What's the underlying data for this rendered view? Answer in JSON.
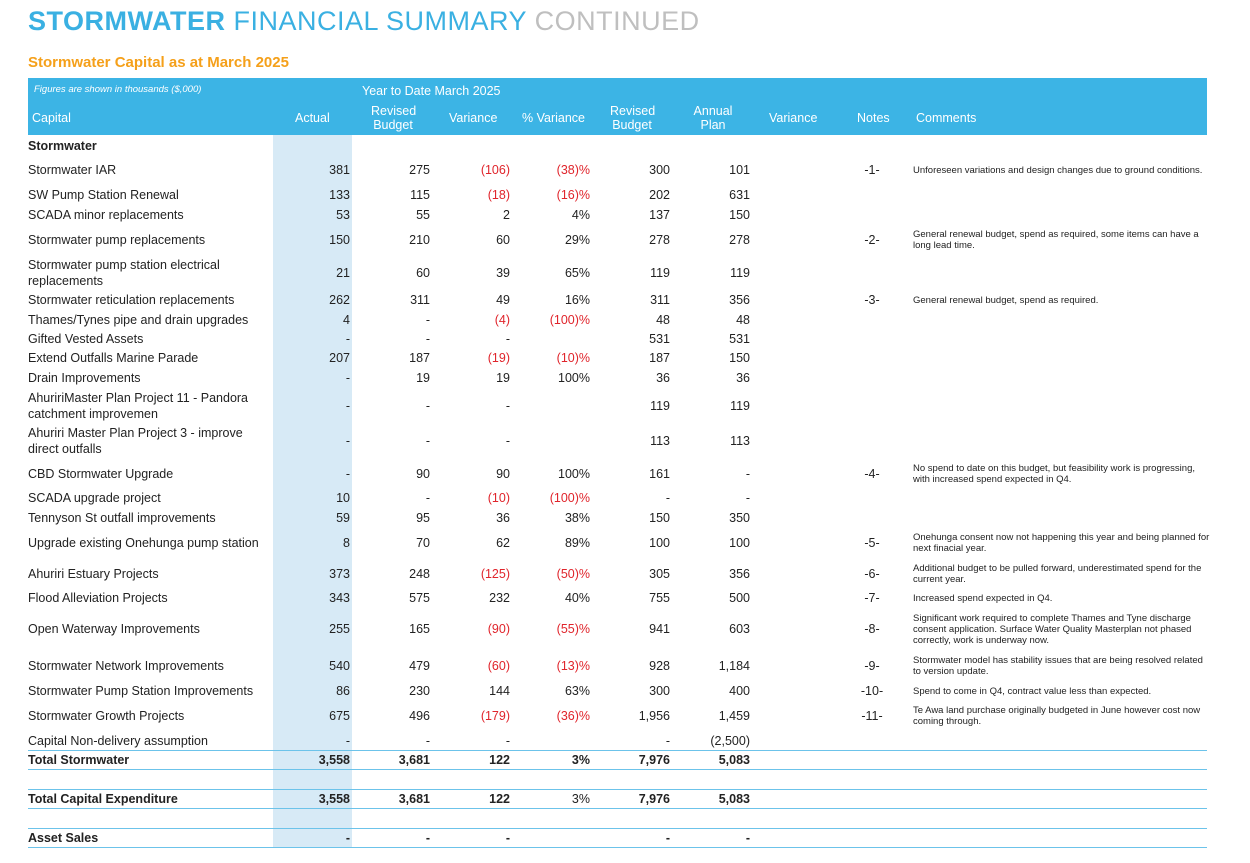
{
  "title": {
    "bold": "STORMWATER",
    "mid": "FINANCIAL SUMMARY",
    "light": "CONTINUED"
  },
  "subtitle": "Stormwater Capital as at March 2025",
  "header": {
    "figures_note": "Figures are shown in thousands ($,000)",
    "ytd": "Year to Date  March 2025",
    "capital": "Capital",
    "actual": "Actual",
    "revised_budget_1": "Revised",
    "revised_budget_2": "Budget",
    "variance": "Variance",
    "pct_variance": "% Variance",
    "revised_budget2_1": "Revised",
    "revised_budget2_2": "Budget",
    "annual_plan_1": "Annual",
    "annual_plan_2": "Plan",
    "variance2": "Variance",
    "notes": "Notes",
    "comments": "Comments"
  },
  "section_label": "Stormwater",
  "rows": [
    {
      "cap": "Stormwater IAR",
      "act": "381",
      "rb": "275",
      "var": "(106)",
      "pv": "(38)%",
      "rb2": "300",
      "ap": "101",
      "nt": "-1-",
      "cm": "Unforeseen variations and design changes due to ground conditions.",
      "neg": true
    },
    {
      "cap": "SW Pump Station Renewal",
      "act": "133",
      "rb": "115",
      "var": "(18)",
      "pv": "(16)%",
      "rb2": "202",
      "ap": "631",
      "nt": "",
      "cm": "",
      "neg": true
    },
    {
      "cap": "SCADA minor replacements",
      "act": "53",
      "rb": "55",
      "var": "2",
      "pv": "4%",
      "rb2": "137",
      "ap": "150",
      "nt": "",
      "cm": "",
      "neg": false
    },
    {
      "cap": "Stormwater pump replacements",
      "act": "150",
      "rb": "210",
      "var": "60",
      "pv": "29%",
      "rb2": "278",
      "ap": "278",
      "nt": "-2-",
      "cm": "General renewal budget, spend as required, some items can have a long lead time.",
      "neg": false
    },
    {
      "cap": "Stormwater pump station electrical replacements",
      "act": "21",
      "rb": "60",
      "var": "39",
      "pv": "65%",
      "rb2": "119",
      "ap": "119",
      "nt": "",
      "cm": "",
      "neg": false
    },
    {
      "cap": "Stormwater reticulation replacements",
      "act": "262",
      "rb": "311",
      "var": "49",
      "pv": "16%",
      "rb2": "311",
      "ap": "356",
      "nt": "-3-",
      "cm": "General renewal budget, spend as required.",
      "neg": false
    },
    {
      "cap": "Thames/Tynes pipe and drain upgrades",
      "act": "4",
      "rb": "-",
      "var": "(4)",
      "pv": "(100)%",
      "rb2": "48",
      "ap": "48",
      "nt": "",
      "cm": "",
      "neg": true
    },
    {
      "cap": "Gifted Vested Assets",
      "act": "-",
      "rb": "-",
      "var": "-",
      "pv": "",
      "rb2": "531",
      "ap": "531",
      "nt": "",
      "cm": "",
      "neg": false
    },
    {
      "cap": "Extend Outfalls Marine Parade",
      "act": "207",
      "rb": "187",
      "var": "(19)",
      "pv": "(10)%",
      "rb2": "187",
      "ap": "150",
      "nt": "",
      "cm": "",
      "neg": true
    },
    {
      "cap": "Drain Improvements",
      "act": "-",
      "rb": "19",
      "var": "19",
      "pv": "100%",
      "rb2": "36",
      "ap": "36",
      "nt": "",
      "cm": "",
      "neg": false
    },
    {
      "cap": "AhuririMaster Plan Project 11 - Pandora catchment improvemen",
      "act": "-",
      "rb": "-",
      "var": "-",
      "pv": "",
      "rb2": "119",
      "ap": "119",
      "nt": "",
      "cm": "",
      "neg": false
    },
    {
      "cap": "Ahuriri Master Plan Project 3 - improve direct outfalls",
      "act": "-",
      "rb": "-",
      "var": "-",
      "pv": "",
      "rb2": "113",
      "ap": "113",
      "nt": "",
      "cm": "",
      "neg": false
    },
    {
      "cap": "CBD Stormwater Upgrade",
      "act": "-",
      "rb": "90",
      "var": "90",
      "pv": "100%",
      "rb2": "161",
      "ap": "-",
      "nt": "-4-",
      "cm": "No spend to date on this budget, but feasibility work is progressing, with increased spend expected in Q4.",
      "neg": false
    },
    {
      "cap": "SCADA upgrade project",
      "act": "10",
      "rb": "-",
      "var": "(10)",
      "pv": "(100)%",
      "rb2": "-",
      "ap": "-",
      "nt": "",
      "cm": "",
      "neg": true
    },
    {
      "cap": "Tennyson St outfall improvements",
      "act": "59",
      "rb": "95",
      "var": "36",
      "pv": "38%",
      "rb2": "150",
      "ap": "350",
      "nt": "",
      "cm": "",
      "neg": false
    },
    {
      "cap": "Upgrade existing Onehunga pump station",
      "act": "8",
      "rb": "70",
      "var": "62",
      "pv": "89%",
      "rb2": "100",
      "ap": "100",
      "nt": "-5-",
      "cm": "Onehunga consent now not happening this year and being planned for next finacial year.",
      "neg": false
    },
    {
      "cap": "Ahuriri Estuary Projects",
      "act": "373",
      "rb": "248",
      "var": "(125)",
      "pv": "(50)%",
      "rb2": "305",
      "ap": "356",
      "nt": "-6-",
      "cm": "Additional budget to be pulled forward, underestimated spend for the current year.",
      "neg": true
    },
    {
      "cap": "Flood Alleviation Projects",
      "act": "343",
      "rb": "575",
      "var": "232",
      "pv": "40%",
      "rb2": "755",
      "ap": "500",
      "nt": "-7-",
      "cm": "Increased spend expected in Q4.",
      "neg": false
    },
    {
      "cap": "Open Waterway Improvements",
      "act": "255",
      "rb": "165",
      "var": "(90)",
      "pv": "(55)%",
      "rb2": "941",
      "ap": "603",
      "nt": "-8-",
      "cm": "Significant work required to complete Thames and Tyne discharge consent application. Surface Water Quality Masterplan not phased correctly, work is underway now.",
      "neg": true
    },
    {
      "cap": "Stormwater Network Improvements",
      "act": "540",
      "rb": "479",
      "var": "(60)",
      "pv": "(13)%",
      "rb2": "928",
      "ap": "1,184",
      "nt": "-9-",
      "cm": "Stormwater model has stability issues that are being resolved related to version update.",
      "neg": true
    },
    {
      "cap": "Stormwater Pump Station Improvements",
      "act": "86",
      "rb": "230",
      "var": "144",
      "pv": "63%",
      "rb2": "300",
      "ap": "400",
      "nt": "-10-",
      "cm": "Spend to come in Q4, contract value less than expected.",
      "neg": false
    },
    {
      "cap": "Stormwater Growth Projects",
      "act": "675",
      "rb": "496",
      "var": "(179)",
      "pv": "(36)%",
      "rb2": "1,956",
      "ap": "1,459",
      "nt": "-11-",
      "cm": "Te Awa land purchase originally budgeted in June however cost now coming through.",
      "neg": true
    },
    {
      "cap": "Capital Non-delivery assumption",
      "act": "-",
      "rb": "-",
      "var": "-",
      "pv": "",
      "rb2": "-",
      "ap": "(2,500)",
      "nt": "",
      "cm": "",
      "neg": false
    }
  ],
  "total_stormwater": {
    "cap": "Total Stormwater",
    "act": "3,558",
    "rb": "3,681",
    "var": "122",
    "pv": "3%",
    "rb2": "7,976",
    "ap": "5,083"
  },
  "total_capex": {
    "cap": "Total Capital Expenditure",
    "act": "3,558",
    "rb": "3,681",
    "var": "122",
    "pv": "3%",
    "rb2": "7,976",
    "ap": "5,083"
  },
  "asset_sales": {
    "cap": "Asset Sales",
    "act": "-",
    "rb": "-",
    "var": "-",
    "pv": "",
    "rb2": "-",
    "ap": "-"
  },
  "colors": {
    "header_bg": "#3cb4e5",
    "title_blue": "#3ab0e2",
    "subtitle_orange": "#f5a01a",
    "negative_red": "#e0242b",
    "actual_col": "#d7eaf6"
  }
}
